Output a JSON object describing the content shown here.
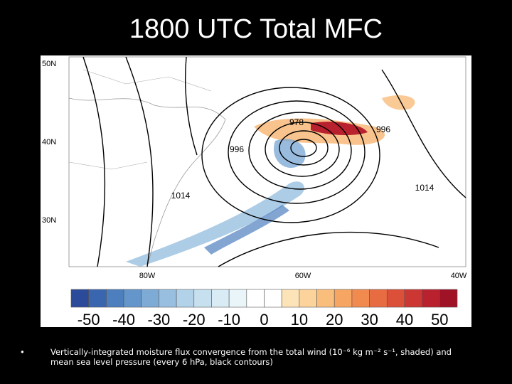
{
  "title": "1800 UTC Total MFC",
  "map": {
    "lat_labels": [
      "50N",
      "40N",
      "30N"
    ],
    "lon_labels": [
      "80W",
      "60W",
      "40W"
    ],
    "contour_labels": [
      "978",
      "996",
      "996",
      "1014",
      "1014"
    ]
  },
  "colorbar": {
    "labels": [
      "-50",
      "-40",
      "-30",
      "-20",
      "-10",
      "0",
      "10",
      "20",
      "30",
      "40",
      "50"
    ],
    "colors": [
      "#2c4a9a",
      "#3a66b0",
      "#4d7fbf",
      "#6496cb",
      "#7eaad6",
      "#98bfe0",
      "#b1d2e9",
      "#c6e0ef",
      "#d9ecf5",
      "#eaf5fa",
      "#ffffff",
      "#ffffff",
      "#fde4b8",
      "#fcd39a",
      "#f9bd7c",
      "#f6a563",
      "#f08a4e",
      "#e86c42",
      "#dc5039",
      "#cc3633",
      "#b8212d",
      "#a01226"
    ]
  },
  "bullet": "Vertically-integrated moisture flux convergence from the total wind (10⁻⁶ kg m⁻² s⁻¹, shaded) and mean sea level pressure (every 6 hPa, black contours)"
}
